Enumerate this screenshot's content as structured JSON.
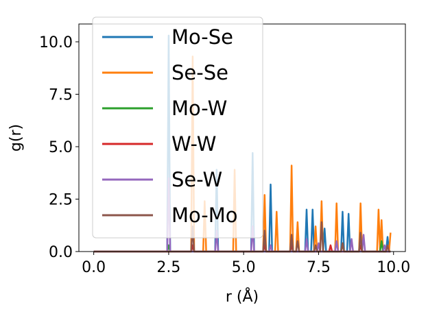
{
  "chart_data": {
    "type": "line",
    "xlabel": "r (Å)",
    "ylabel": "g(r)",
    "xlim": [
      -0.495,
      10.395
    ],
    "ylim": [
      0,
      10.85
    ],
    "x_ticks": [
      0.0,
      2.5,
      5.0,
      7.5,
      10.0
    ],
    "x_tick_labels": [
      "0.0",
      "2.5",
      "5.0",
      "7.5",
      "10.0"
    ],
    "y_ticks": [
      0.0,
      2.5,
      5.0,
      7.5,
      10.0
    ],
    "y_tick_labels": [
      "0.0",
      "2.5",
      "5.0",
      "7.5",
      "10.0"
    ],
    "grid": false,
    "legend_position": "upper-left",
    "series": [
      {
        "name": "Mo-Se",
        "color": "#1f77b4",
        "peaks": [
          [
            2.5,
            10.3
          ],
          [
            4.1,
            3.9
          ],
          [
            5.3,
            4.7
          ],
          [
            5.9,
            3.2
          ],
          [
            7.1,
            2.0
          ],
          [
            7.3,
            2.0
          ],
          [
            7.7,
            1.1
          ],
          [
            8.3,
            1.9
          ],
          [
            8.5,
            1.8
          ],
          [
            8.9,
            1.3
          ],
          [
            9.8,
            0.7
          ]
        ]
      },
      {
        "name": "Se-Se",
        "color": "#ff7f0e",
        "peaks": [
          [
            3.3,
            9.3
          ],
          [
            3.7,
            2.4
          ],
          [
            4.7,
            3.9
          ],
          [
            5.7,
            2.7
          ],
          [
            6.1,
            1.9
          ],
          [
            6.6,
            4.1
          ],
          [
            6.8,
            1.4
          ],
          [
            7.4,
            1.2
          ],
          [
            7.6,
            2.4
          ],
          [
            8.1,
            2.3
          ],
          [
            8.9,
            2.3
          ],
          [
            9.5,
            2.0
          ],
          [
            9.6,
            1.5
          ],
          [
            9.9,
            0.9
          ]
        ]
      },
      {
        "name": "Mo-W",
        "color": "#2ca02c",
        "peaks": [
          [
            2.5,
            0.3
          ],
          [
            3.3,
            0.3
          ],
          [
            5.7,
            0.4
          ],
          [
            6.6,
            0.3
          ],
          [
            8.3,
            0.4
          ],
          [
            9.6,
            0.5
          ]
        ]
      },
      {
        "name": "W-W",
        "color": "#d62728",
        "peaks": [
          [
            3.3,
            0.3
          ],
          [
            5.7,
            0.3
          ],
          [
            6.6,
            0.3
          ],
          [
            7.9,
            0.3
          ],
          [
            8.9,
            0.3
          ]
        ]
      },
      {
        "name": "Se-W",
        "color": "#9467bd",
        "peaks": [
          [
            2.5,
            3.5
          ],
          [
            4.1,
            1.0
          ],
          [
            5.3,
            1.2
          ],
          [
            5.9,
            0.3
          ],
          [
            7.1,
            0.6
          ],
          [
            7.5,
            0.4
          ],
          [
            8.1,
            0.5
          ],
          [
            8.6,
            0.6
          ],
          [
            9.0,
            0.8
          ],
          [
            9.7,
            0.3
          ]
        ]
      },
      {
        "name": "Mo-Mo",
        "color": "#8c564b",
        "peaks": [
          [
            3.3,
            1.2
          ],
          [
            5.7,
            1.0
          ],
          [
            6.6,
            0.8
          ],
          [
            6.8,
            0.5
          ],
          [
            7.4,
            0.3
          ],
          [
            7.6,
            1.4
          ],
          [
            8.3,
            0.4
          ],
          [
            8.9,
            0.9
          ],
          [
            9.8,
            0.3
          ]
        ]
      }
    ]
  }
}
